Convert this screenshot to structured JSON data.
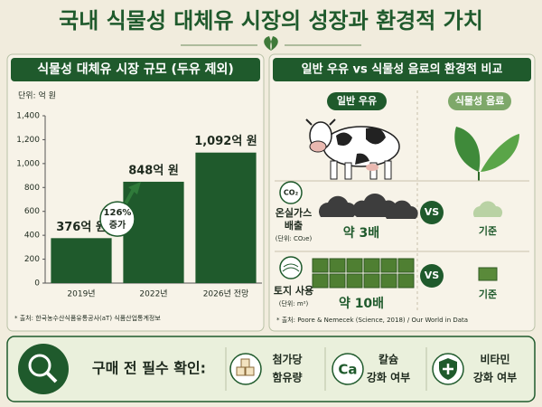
{
  "title": "국내 식물성 대체유 시장의 성장과 환경적 가치",
  "chart_data": {
    "type": "bar",
    "title": "식물성 대체유 시장 규모 (두유 제외)",
    "unit_label": "단위: 억 원",
    "categories": [
      "2019년",
      "2022년",
      "2026년 전망"
    ],
    "values": [
      376,
      848,
      1092
    ],
    "value_labels": [
      "376억 원",
      "848억 원",
      "1,092억 원"
    ],
    "color": "#1f5a2c",
    "ylim": [
      0,
      1400
    ],
    "yticks": [
      0,
      200,
      400,
      600,
      800,
      {
        "value": 1000,
        "label": "1,000"
      },
      {
        "value": 1200,
        "label": "1,200"
      },
      {
        "value": 1400,
        "label": "1,400"
      }
    ],
    "grid": false,
    "annotations": [
      "126%",
      "증가"
    ],
    "source": "* 출처: 한국농수산식품유통공사(aT) 식품산업통계정보"
  },
  "comparison": {
    "title": "일반 우유 vs 식물성 음료의 환경적 비교",
    "columns": [
      "일반 우유",
      "식물성 음료"
    ],
    "rows": [
      {
        "icon": "CO₂",
        "label": [
          "온실가스",
          "배출"
        ],
        "unit": "(단위: CO₂e)",
        "milk": "약 3배",
        "vs": "VS",
        "plant": "기준"
      },
      {
        "label": [
          "토지 사용"
        ],
        "unit": "(단위: m²)",
        "milk": "약 10배",
        "vs": "VS",
        "plant": "기준"
      }
    ],
    "source": "* 출처: Poore & Nemecek (Science, 2018) / Our World in Data"
  },
  "checklist": {
    "title": "구매 전 필수 확인:",
    "items": [
      {
        "label": [
          "첨가당",
          "함유량"
        ]
      },
      {
        "icon": "Ca",
        "label": [
          "칼슘",
          "강화 여부"
        ]
      },
      {
        "label": [
          "비타민",
          "강화 여부"
        ]
      }
    ]
  }
}
